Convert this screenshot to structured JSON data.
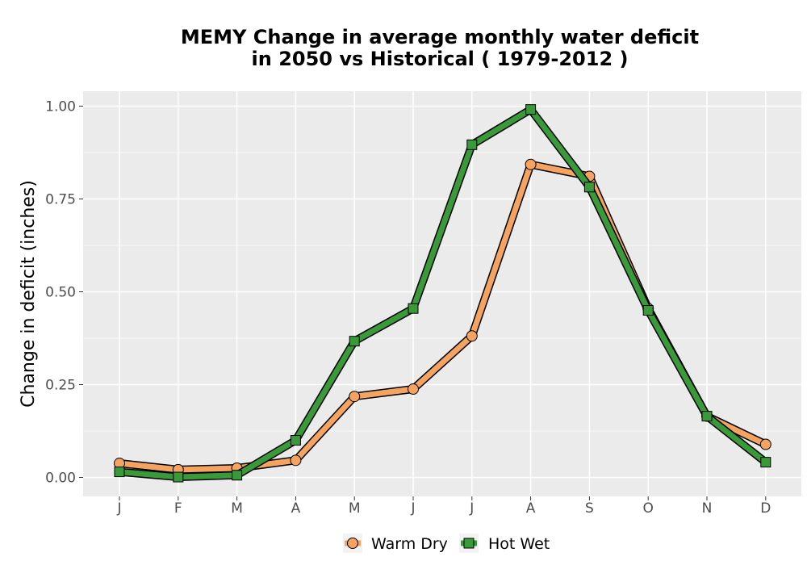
{
  "chart_data": {
    "type": "line",
    "title_line1": "MEMY  Change in average monthly water deficit",
    "title_line2": "in 2050 vs Historical ( 1979-2012 )",
    "xlabel": "",
    "ylabel": "Change in deficit (inches)",
    "categories": [
      "J",
      "F",
      "M",
      "A",
      "M",
      "J",
      "J",
      "A",
      "S",
      "O",
      "N",
      "D"
    ],
    "ylim": [
      -0.05,
      1.04
    ],
    "yticks": [
      0.0,
      0.25,
      0.5,
      0.75,
      1.0
    ],
    "ytick_labels": [
      "0.00",
      "0.25",
      "0.50",
      "0.75",
      "1.00"
    ],
    "grid": true,
    "legend_position": "bottom",
    "series": [
      {
        "name": "Warm Dry",
        "color": "#f4a460",
        "marker": "circle",
        "values": [
          0.038,
          0.021,
          0.025,
          0.046,
          0.218,
          0.238,
          0.381,
          0.843,
          0.811,
          0.455,
          0.165,
          0.089
        ]
      },
      {
        "name": "Hot Wet",
        "color": "#3a9a3a",
        "marker": "square",
        "values": [
          0.015,
          0.001,
          0.006,
          0.1,
          0.367,
          0.455,
          0.896,
          0.991,
          0.782,
          0.45,
          0.165,
          0.041
        ]
      }
    ]
  }
}
